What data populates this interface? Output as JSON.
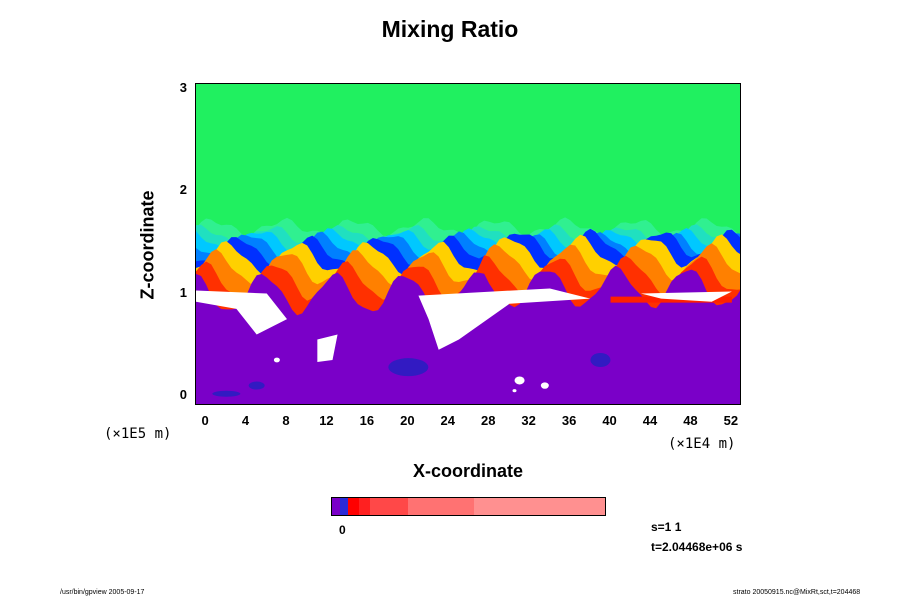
{
  "chart_data": {
    "type": "heatmap",
    "title": "Mixing Ratio",
    "xlabel": "X-coordinate",
    "ylabel": "Z-coordinate",
    "x_scale_label": "(×1E4 m)",
    "y_scale_label": "(×1E5 m)",
    "xlim": [
      -1,
      53
    ],
    "ylim": [
      -0.1,
      3.05
    ],
    "x_ticks": [
      "0",
      "4",
      "8",
      "12",
      "16",
      "20",
      "24",
      "28",
      "32",
      "36",
      "40",
      "44",
      "48",
      "52"
    ],
    "y_ticks": [
      "0",
      "1",
      "2",
      "3"
    ],
    "colorbar": {
      "zero_label": "0",
      "colors": [
        "#7a00c8",
        "#2a2ad8",
        "#ff0000",
        "#ff2020",
        "#ff4848",
        "#ff7272",
        "#ff9090"
      ]
    },
    "layers": [
      {
        "z": 3.05,
        "color": "#20f060"
      },
      {
        "z": 1.65,
        "color": "#30f090"
      },
      {
        "z": 1.57,
        "color": "#20e0c0"
      },
      {
        "z": 1.52,
        "color": "#00c8ff"
      },
      {
        "z": 1.47,
        "color": "#0080ff"
      },
      {
        "z": 1.42,
        "color": "#0030ff"
      },
      {
        "z": 1.35,
        "color": "#ffd000"
      },
      {
        "z": 1.25,
        "color": "#ff8000"
      },
      {
        "z": 1.12,
        "color": "#ff3000"
      },
      {
        "z": 1.0,
        "color": "#7a00c8"
      }
    ],
    "upper_field_color": "#40f050",
    "purple_color": "#7a00c8",
    "deep_blue_color": "#2020c0",
    "white_color": "#ffffff"
  },
  "info": {
    "step": "s=1 1",
    "time": "t=2.04468e+06 s"
  },
  "footer": {
    "left": "/usr/bin/gpview 2005-09-17",
    "right": "strato 20050915.nc@MixRt,sct,t=204468"
  }
}
